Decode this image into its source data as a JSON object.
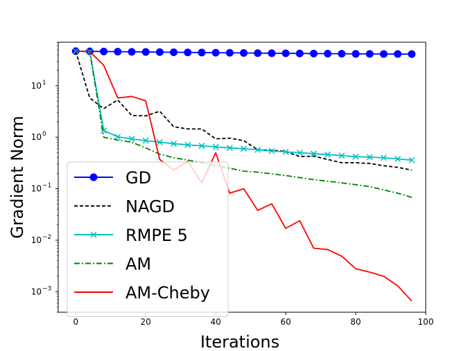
{
  "chart_data": {
    "type": "line",
    "xlabel": "Iterations",
    "ylabel": "Gradient Norm",
    "xlim": [
      -5,
      100
    ],
    "y_scale": "log",
    "ylim": [
      0.0004,
      70
    ],
    "x_ticks": [
      0,
      20,
      40,
      60,
      80,
      100
    ],
    "y_ticks": [
      {
        "value": 0.001,
        "base": "10",
        "exp": "−3"
      },
      {
        "value": 0.01,
        "base": "10",
        "exp": "−2"
      },
      {
        "value": 0.1,
        "base": "10",
        "exp": "−1"
      },
      {
        "value": 1,
        "base": "10",
        "exp": "0"
      },
      {
        "value": 10,
        "base": "10",
        "exp": "1"
      }
    ],
    "grid": false,
    "legend_position": "lower-left",
    "series": [
      {
        "name": "GD",
        "color": "#0000ff",
        "dash": "solid",
        "marker": "circle",
        "x": [
          0,
          4,
          8,
          12,
          16,
          20,
          24,
          28,
          32,
          36,
          40,
          44,
          48,
          52,
          56,
          60,
          64,
          68,
          72,
          76,
          80,
          84,
          88,
          92,
          96
        ],
        "y": [
          47,
          46.6,
          46.2,
          45.9,
          45.6,
          45.3,
          45,
          44.7,
          44.4,
          44.1,
          43.8,
          43.6,
          43.3,
          43,
          42.8,
          42.6,
          42.4,
          42.2,
          42,
          41.8,
          41.6,
          41.5,
          41.4,
          41.3,
          41.2
        ]
      },
      {
        "name": "NAGD",
        "color": "#000000",
        "dash": "dashed",
        "marker": "none",
        "x": [
          0,
          4,
          8,
          12,
          16,
          20,
          24,
          28,
          32,
          36,
          40,
          44,
          48,
          52,
          56,
          60,
          64,
          68,
          72,
          76,
          80,
          84,
          88,
          92,
          96
        ],
        "y": [
          47,
          5.8,
          3.6,
          5.3,
          2.65,
          2.6,
          3.2,
          1.6,
          1.45,
          1.45,
          0.93,
          0.96,
          0.86,
          0.57,
          0.56,
          0.53,
          0.42,
          0.43,
          0.37,
          0.32,
          0.32,
          0.31,
          0.28,
          0.26,
          0.23
        ]
      },
      {
        "name": "RMPE 5",
        "color": "#00bfbf",
        "dash": "solid",
        "marker": "x",
        "x": [
          0,
          4,
          8,
          12,
          16,
          20,
          24,
          28,
          32,
          36,
          40,
          44,
          48,
          52,
          56,
          60,
          64,
          68,
          72,
          76,
          80,
          84,
          88,
          92,
          96
        ],
        "y": [
          47,
          46,
          1.35,
          1.02,
          0.93,
          0.86,
          0.8,
          0.75,
          0.71,
          0.68,
          0.65,
          0.62,
          0.6,
          0.57,
          0.54,
          0.52,
          0.5,
          0.48,
          0.46,
          0.44,
          0.42,
          0.41,
          0.4,
          0.38,
          0.36
        ]
      },
      {
        "name": "AM",
        "color": "#008000",
        "dash": "dashdot",
        "marker": "none",
        "x": [
          0,
          4,
          8,
          12,
          16,
          20,
          24,
          28,
          32,
          36,
          40,
          44,
          48,
          52,
          56,
          60,
          64,
          68,
          72,
          76,
          80,
          84,
          88,
          92,
          96
        ],
        "y": [
          47,
          46,
          1.0,
          0.88,
          0.8,
          0.62,
          0.47,
          0.4,
          0.36,
          0.32,
          0.28,
          0.25,
          0.22,
          0.21,
          0.195,
          0.18,
          0.165,
          0.15,
          0.14,
          0.13,
          0.12,
          0.11,
          0.095,
          0.082,
          0.068
        ]
      },
      {
        "name": "AM-Cheby",
        "color": "#ff0000",
        "dash": "solid",
        "marker": "none",
        "x": [
          0,
          4,
          8,
          12,
          16,
          20,
          24,
          28,
          32,
          36,
          40,
          44,
          48,
          52,
          56,
          60,
          64,
          68,
          72,
          76,
          80,
          84,
          88,
          92,
          96
        ],
        "y": [
          47,
          46,
          25,
          5.8,
          6.2,
          5.1,
          0.37,
          0.23,
          0.34,
          0.13,
          0.5,
          0.082,
          0.1,
          0.038,
          0.051,
          0.017,
          0.024,
          0.007,
          0.0066,
          0.0049,
          0.0028,
          0.0024,
          0.002,
          0.0013,
          0.00066
        ]
      }
    ]
  }
}
